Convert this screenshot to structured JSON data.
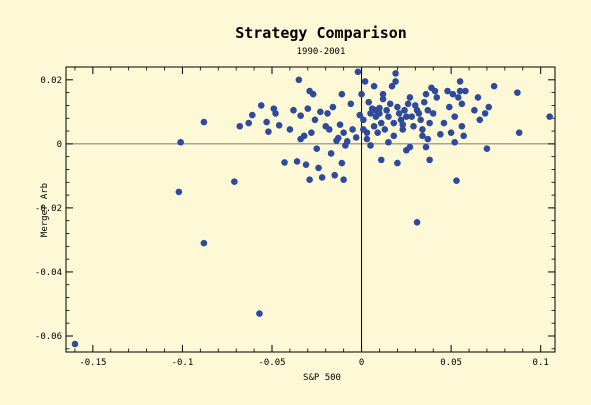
{
  "chart_data": {
    "type": "scatter",
    "title": "Strategy Comparison",
    "subtitle": "1990-2001",
    "xlabel": "S&P 500",
    "ylabel": "Merger Arb",
    "xlim": [
      -0.165,
      0.108
    ],
    "ylim": [
      -0.065,
      0.024
    ],
    "x_ticks": [
      {
        "value": -0.15,
        "label": "-0.15"
      },
      {
        "value": -0.1,
        "label": "-0.1"
      },
      {
        "value": -0.05,
        "label": "-0.05"
      },
      {
        "value": 0,
        "label": "0"
      },
      {
        "value": 0.05,
        "label": "0.05"
      },
      {
        "value": 0.1,
        "label": "0.1"
      }
    ],
    "y_ticks": [
      {
        "value": 0.02,
        "label": "0.02"
      },
      {
        "value": 0,
        "label": "0"
      },
      {
        "value": -0.02,
        "label": "-0.02"
      },
      {
        "value": -0.04,
        "label": "-0.04"
      },
      {
        "value": -0.06,
        "label": "-0.06"
      }
    ],
    "grid": false,
    "colors": {
      "point": "#2e4a9c",
      "background": "#fdf8d6"
    },
    "points": [
      [
        -0.16,
        -0.0625
      ],
      [
        -0.101,
        0.0005
      ],
      [
        -0.102,
        -0.015
      ],
      [
        -0.088,
        0.0068
      ],
      [
        -0.088,
        -0.031
      ],
      [
        -0.071,
        -0.0118
      ],
      [
        -0.057,
        -0.053
      ],
      [
        -0.068,
        0.0055
      ],
      [
        -0.063,
        0.0065
      ],
      [
        -0.061,
        0.009
      ],
      [
        -0.056,
        0.012
      ],
      [
        -0.053,
        0.0068
      ],
      [
        -0.052,
        0.0038
      ],
      [
        -0.049,
        0.011
      ],
      [
        -0.048,
        0.0095
      ],
      [
        -0.046,
        0.0058
      ],
      [
        -0.043,
        -0.0058
      ],
      [
        -0.04,
        0.0045
      ],
      [
        -0.038,
        0.0105
      ],
      [
        -0.036,
        -0.0055
      ],
      [
        -0.035,
        0.02
      ],
      [
        -0.034,
        0.0088
      ],
      [
        -0.034,
        0.0015
      ],
      [
        -0.032,
        0.0025
      ],
      [
        -0.031,
        -0.0065
      ],
      [
        -0.03,
        0.011
      ],
      [
        -0.029,
        0.0165
      ],
      [
        -0.029,
        -0.0112
      ],
      [
        -0.028,
        0.0035
      ],
      [
        -0.027,
        0.0155
      ],
      [
        -0.026,
        0.0075
      ],
      [
        -0.025,
        -0.0015
      ],
      [
        -0.024,
        -0.0075
      ],
      [
        -0.023,
        0.01
      ],
      [
        -0.022,
        -0.0105
      ],
      [
        -0.02,
        0.0055
      ],
      [
        -0.019,
        0.0095
      ],
      [
        -0.018,
        0.0045
      ],
      [
        -0.017,
        -0.003
      ],
      [
        -0.016,
        0.0115
      ],
      [
        -0.015,
        -0.0098
      ],
      [
        -0.014,
        0.001
      ],
      [
        -0.013,
        0.0018
      ],
      [
        -0.012,
        0.006
      ],
      [
        -0.011,
        0.0155
      ],
      [
        -0.011,
        -0.006
      ],
      [
        -0.01,
        0.0035
      ],
      [
        -0.01,
        -0.0112
      ],
      [
        -0.009,
        -0.0005
      ],
      [
        -0.008,
        0.0008
      ],
      [
        -0.006,
        0.0125
      ],
      [
        -0.005,
        0.0045
      ],
      [
        -0.003,
        0.002
      ],
      [
        -0.002,
        0.0225
      ],
      [
        -0.001,
        0.009
      ],
      [
        0,
        0.0155
      ],
      [
        0.001,
        0.0075
      ],
      [
        0.001,
        0.0045
      ],
      [
        0.002,
        0.0195
      ],
      [
        0.003,
        0.0035
      ],
      [
        0.003,
        0.0015
      ],
      [
        0.004,
        0.013
      ],
      [
        0.005,
        -0.0005
      ],
      [
        0.005,
        0.0095
      ],
      [
        0.006,
        0.011
      ],
      [
        0.007,
        0.018
      ],
      [
        0.007,
        0.0055
      ],
      [
        0.008,
        0.0105
      ],
      [
        0.008,
        0.0085
      ],
      [
        0.009,
        0.0035
      ],
      [
        0.01,
        0.0112
      ],
      [
        0.01,
        0.0095
      ],
      [
        0.011,
        0.0065
      ],
      [
        0.011,
        -0.005
      ],
      [
        0.012,
        0.0155
      ],
      [
        0.012,
        0.014
      ],
      [
        0.013,
        0.0045
      ],
      [
        0.014,
        0.0105
      ],
      [
        0.015,
        0.0085
      ],
      [
        0.015,
        0.0005
      ],
      [
        0.016,
        0.0125
      ],
      [
        0.017,
        0.018
      ],
      [
        0.018,
        0.0065
      ],
      [
        0.018,
        0.0025
      ],
      [
        0.019,
        0.0195
      ],
      [
        0.019,
        0.022
      ],
      [
        0.02,
        0.0115
      ],
      [
        0.02,
        -0.006
      ],
      [
        0.021,
        0.0095
      ],
      [
        0.022,
        0.0075
      ],
      [
        0.023,
        0.006
      ],
      [
        0.023,
        0.0045
      ],
      [
        0.024,
        0.0105
      ],
      [
        0.025,
        0.0085
      ],
      [
        0.025,
        -0.002
      ],
      [
        0.026,
        0.0125
      ],
      [
        0.027,
        0.0145
      ],
      [
        0.027,
        -0.001
      ],
      [
        0.028,
        0.0085
      ],
      [
        0.029,
        0.0055
      ],
      [
        0.03,
        0.012
      ],
      [
        0.031,
        0.0105
      ],
      [
        0.031,
        -0.0245
      ],
      [
        0.032,
        0.0095
      ],
      [
        0.033,
        0.0075
      ],
      [
        0.034,
        0.0045
      ],
      [
        0.034,
        0.0025
      ],
      [
        0.035,
        0.013
      ],
      [
        0.036,
        0.0155
      ],
      [
        0.036,
        -0.001
      ],
      [
        0.037,
        0.0105
      ],
      [
        0.037,
        0.0015
      ],
      [
        0.038,
        0.0065
      ],
      [
        0.038,
        -0.005
      ],
      [
        0.039,
        0.0175
      ],
      [
        0.04,
        0.0095
      ],
      [
        0.041,
        0.0165
      ],
      [
        0.042,
        0.0145
      ],
      [
        0.044,
        0.003
      ],
      [
        0.046,
        0.0065
      ],
      [
        0.048,
        0.0165
      ],
      [
        0.049,
        0.0115
      ],
      [
        0.05,
        0.0035
      ],
      [
        0.051,
        0.0155
      ],
      [
        0.052,
        0.0005
      ],
      [
        0.052,
        0.0085
      ],
      [
        0.053,
        -0.0115
      ],
      [
        0.054,
        0.0145
      ],
      [
        0.055,
        0.0195
      ],
      [
        0.055,
        0.0165
      ],
      [
        0.056,
        0.0125
      ],
      [
        0.056,
        0.0055
      ],
      [
        0.057,
        0.0025
      ],
      [
        0.058,
        0.0165
      ],
      [
        0.063,
        0.0105
      ],
      [
        0.065,
        0.0145
      ],
      [
        0.066,
        0.0075
      ],
      [
        0.069,
        0.0095
      ],
      [
        0.07,
        -0.0015
      ],
      [
        0.071,
        0.0115
      ],
      [
        0.074,
        0.018
      ],
      [
        0.087,
        0.016
      ],
      [
        0.088,
        0.0035
      ],
      [
        0.105,
        0.0085
      ]
    ]
  }
}
